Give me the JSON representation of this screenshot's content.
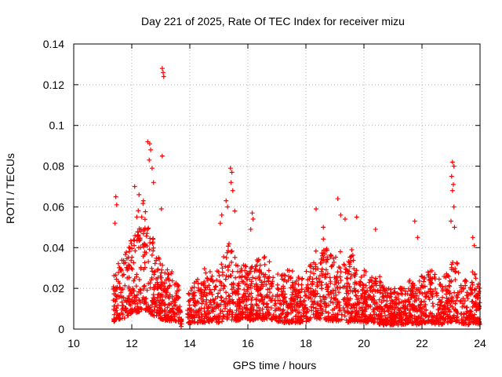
{
  "chart_data": {
    "type": "scatter",
    "title": "Day 221 of 2025, Rate Of TEC Index for receiver mizu",
    "xlabel": "GPS time / hours",
    "ylabel": "ROTI / TECUs",
    "xlim": [
      10,
      24
    ],
    "ylim": [
      0,
      0.14
    ],
    "xticks": [
      10,
      12,
      14,
      16,
      18,
      20,
      22,
      24
    ],
    "yticks": [
      0,
      0.02,
      0.04,
      0.06,
      0.08,
      0.1,
      0.12,
      0.14
    ],
    "xtick_labels": [
      "10",
      "12",
      "14",
      "16",
      "18",
      "20",
      "22",
      "24"
    ],
    "ytick_labels": [
      "0",
      "0.02",
      "0.04",
      "0.06",
      "0.08",
      "0.1",
      "0.12",
      "0.14"
    ],
    "grid": true,
    "marker": "+",
    "color": "#ff0000",
    "series": [
      {
        "name": "ROTI",
        "x_range": [
          11.35,
          24.0
        ],
        "envelope": {
          "x": [
            11.35,
            11.6,
            11.8,
            12.0,
            12.2,
            12.4,
            12.6,
            12.8,
            13.0,
            13.2,
            13.4,
            13.6,
            13.75,
            13.9,
            14.2,
            14.5,
            14.8,
            15.0,
            15.3,
            15.6,
            15.8,
            16.1,
            16.3,
            16.6,
            16.9,
            17.2,
            17.5,
            17.8,
            18.1,
            18.4,
            18.6,
            18.8,
            19.0,
            19.2,
            19.4,
            19.6,
            19.8,
            20.0,
            20.2,
            20.4,
            20.6,
            20.8,
            21.0,
            21.3,
            21.6,
            21.8,
            22.0,
            22.3,
            22.6,
            22.9,
            23.1,
            23.3,
            23.6,
            23.8,
            24.0
          ],
          "upper": [
            0.025,
            0.035,
            0.038,
            0.045,
            0.058,
            0.062,
            0.05,
            0.042,
            0.032,
            0.03,
            0.028,
            0.026,
            0.0,
            0.02,
            0.024,
            0.03,
            0.028,
            0.03,
            0.045,
            0.036,
            0.032,
            0.03,
            0.034,
            0.036,
            0.03,
            0.028,
            0.03,
            0.026,
            0.032,
            0.04,
            0.045,
            0.038,
            0.036,
            0.04,
            0.03,
            0.04,
            0.028,
            0.03,
            0.025,
            0.028,
            0.025,
            0.02,
            0.02,
            0.022,
            0.025,
            0.02,
            0.028,
            0.03,
            0.025,
            0.028,
            0.035,
            0.03,
            0.025,
            0.03,
            0.02
          ],
          "lower": [
            0.003,
            0.005,
            0.005,
            0.008,
            0.008,
            0.01,
            0.008,
            0.006,
            0.005,
            0.004,
            0.004,
            0.004,
            0.0,
            0.003,
            0.003,
            0.003,
            0.004,
            0.003,
            0.005,
            0.004,
            0.005,
            0.004,
            0.005,
            0.004,
            0.004,
            0.003,
            0.003,
            0.003,
            0.004,
            0.005,
            0.005,
            0.004,
            0.004,
            0.004,
            0.003,
            0.004,
            0.003,
            0.003,
            0.003,
            0.003,
            0.002,
            0.002,
            0.002,
            0.002,
            0.003,
            0.002,
            0.003,
            0.003,
            0.002,
            0.003,
            0.004,
            0.003,
            0.002,
            0.003,
            0.002
          ]
        },
        "gap": [
          13.72,
          13.92
        ],
        "spikes": [
          {
            "x": 11.45,
            "y": 0.065
          },
          {
            "x": 11.48,
            "y": 0.061
          },
          {
            "x": 11.42,
            "y": 0.052
          },
          {
            "x": 12.1,
            "y": 0.07
          },
          {
            "x": 12.25,
            "y": 0.066
          },
          {
            "x": 12.4,
            "y": 0.063
          },
          {
            "x": 12.55,
            "y": 0.092
          },
          {
            "x": 12.62,
            "y": 0.091
          },
          {
            "x": 12.65,
            "y": 0.088
          },
          {
            "x": 12.6,
            "y": 0.083
          },
          {
            "x": 12.7,
            "y": 0.079
          },
          {
            "x": 12.75,
            "y": 0.072
          },
          {
            "x": 13.05,
            "y": 0.128
          },
          {
            "x": 13.08,
            "y": 0.126
          },
          {
            "x": 13.1,
            "y": 0.124
          },
          {
            "x": 13.05,
            "y": 0.085
          },
          {
            "x": 13.02,
            "y": 0.059
          },
          {
            "x": 15.4,
            "y": 0.079
          },
          {
            "x": 15.45,
            "y": 0.077
          },
          {
            "x": 15.42,
            "y": 0.072
          },
          {
            "x": 15.48,
            "y": 0.068
          },
          {
            "x": 15.25,
            "y": 0.063
          },
          {
            "x": 15.3,
            "y": 0.06
          },
          {
            "x": 15.1,
            "y": 0.056
          },
          {
            "x": 15.05,
            "y": 0.052
          },
          {
            "x": 15.55,
            "y": 0.058
          },
          {
            "x": 16.15,
            "y": 0.057
          },
          {
            "x": 16.18,
            "y": 0.054
          },
          {
            "x": 16.1,
            "y": 0.049
          },
          {
            "x": 18.35,
            "y": 0.059
          },
          {
            "x": 18.6,
            "y": 0.05
          },
          {
            "x": 19.1,
            "y": 0.064
          },
          {
            "x": 19.2,
            "y": 0.056
          },
          {
            "x": 19.35,
            "y": 0.054
          },
          {
            "x": 19.75,
            "y": 0.055
          },
          {
            "x": 20.4,
            "y": 0.049
          },
          {
            "x": 21.75,
            "y": 0.053
          },
          {
            "x": 21.85,
            "y": 0.045
          },
          {
            "x": 23.05,
            "y": 0.082
          },
          {
            "x": 23.1,
            "y": 0.08
          },
          {
            "x": 23.02,
            "y": 0.075
          },
          {
            "x": 23.08,
            "y": 0.071
          },
          {
            "x": 23.05,
            "y": 0.068
          },
          {
            "x": 23.1,
            "y": 0.06
          },
          {
            "x": 23.0,
            "y": 0.053
          },
          {
            "x": 23.12,
            "y": 0.05
          },
          {
            "x": 23.75,
            "y": 0.045
          },
          {
            "x": 23.8,
            "y": 0.041
          }
        ]
      }
    ]
  }
}
